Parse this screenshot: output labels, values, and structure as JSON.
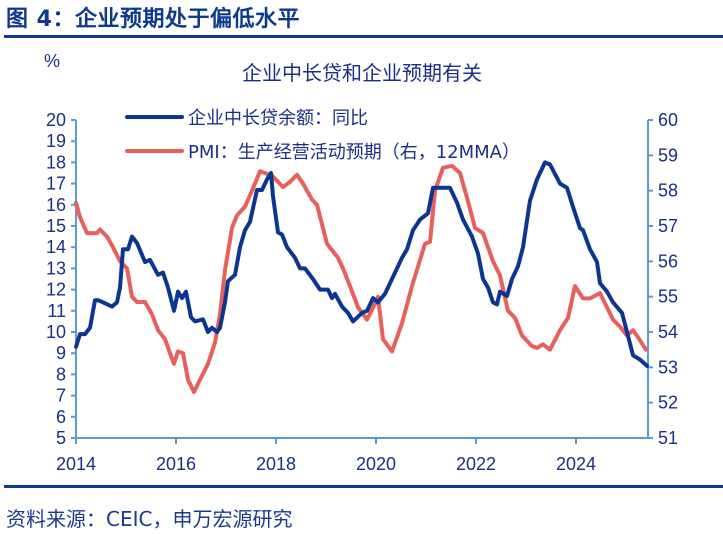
{
  "figure_title": "图 4：企业预期处于偏低水平",
  "source": "资料来源：CEIC，申万宏源研究",
  "chart_data": {
    "type": "line",
    "title": "企业中长贷和企业预期有关",
    "ylabel": "%",
    "xlim": [
      2014,
      2025.6
    ],
    "ylim_left": [
      5,
      20
    ],
    "ylim_right": [
      51,
      60
    ],
    "x_ticks": [
      "2014",
      "2016",
      "2018",
      "2020",
      "2022",
      "2024"
    ],
    "y_ticks_left": [
      "5",
      "6",
      "7",
      "8",
      "9",
      "10",
      "11",
      "12",
      "13",
      "14",
      "15",
      "16",
      "17",
      "18",
      "19",
      "20"
    ],
    "y_ticks_right": [
      "51",
      "52",
      "53",
      "54",
      "55",
      "56",
      "57",
      "58",
      "59",
      "60"
    ],
    "legend_position": "top-left",
    "colors": {
      "loan": "#0a3591",
      "pmi": "#e8605c",
      "axis": "#5b9bd5",
      "title": "#0d3a8e"
    },
    "series": [
      {
        "name": "企业中长贷余额：同比",
        "axis": "left",
        "color": "#0a3591",
        "points": [
          [
            2014.0,
            9.3
          ],
          [
            2014.08,
            9.9
          ],
          [
            2014.18,
            9.9
          ],
          [
            2014.28,
            10.2
          ],
          [
            2014.38,
            11.5
          ],
          [
            2014.44,
            11.5
          ],
          [
            2014.54,
            11.4
          ],
          [
            2014.72,
            11.2
          ],
          [
            2014.82,
            11.4
          ],
          [
            2014.88,
            12.1
          ],
          [
            2014.94,
            13.9
          ],
          [
            2015.04,
            13.9
          ],
          [
            2015.12,
            14.5
          ],
          [
            2015.22,
            14.2
          ],
          [
            2015.38,
            13.3
          ],
          [
            2015.48,
            13.4
          ],
          [
            2015.64,
            12.7
          ],
          [
            2015.74,
            12.8
          ],
          [
            2015.84,
            12.1
          ],
          [
            2015.96,
            11.0
          ],
          [
            2016.04,
            11.9
          ],
          [
            2016.12,
            11.6
          ],
          [
            2016.2,
            11.9
          ],
          [
            2016.3,
            10.7
          ],
          [
            2016.38,
            10.5
          ],
          [
            2016.54,
            10.6
          ],
          [
            2016.64,
            10.0
          ],
          [
            2016.72,
            10.2
          ],
          [
            2016.82,
            10.0
          ],
          [
            2016.88,
            10.2
          ],
          [
            2016.98,
            11.4
          ],
          [
            2017.04,
            12.4
          ],
          [
            2017.18,
            12.7
          ],
          [
            2017.28,
            14.0
          ],
          [
            2017.38,
            14.8
          ],
          [
            2017.48,
            15.2
          ],
          [
            2017.62,
            16.7
          ],
          [
            2017.72,
            16.7
          ],
          [
            2017.82,
            17.2
          ],
          [
            2017.9,
            17.5
          ],
          [
            2017.94,
            16.4
          ],
          [
            2018.04,
            14.7
          ],
          [
            2018.12,
            14.6
          ],
          [
            2018.22,
            14.0
          ],
          [
            2018.38,
            13.5
          ],
          [
            2018.48,
            13.0
          ],
          [
            2018.58,
            13.0
          ],
          [
            2018.74,
            12.5
          ],
          [
            2018.88,
            12.0
          ],
          [
            2019.04,
            12.0
          ],
          [
            2019.12,
            11.6
          ],
          [
            2019.18,
            11.8
          ],
          [
            2019.32,
            11.2
          ],
          [
            2019.44,
            10.9
          ],
          [
            2019.54,
            10.5
          ],
          [
            2019.72,
            10.9
          ],
          [
            2019.82,
            11.0
          ],
          [
            2019.94,
            11.6
          ],
          [
            2020.04,
            11.4
          ],
          [
            2020.18,
            11.8
          ],
          [
            2020.34,
            12.6
          ],
          [
            2020.52,
            13.5
          ],
          [
            2020.62,
            13.9
          ],
          [
            2020.74,
            14.8
          ],
          [
            2020.88,
            15.3
          ],
          [
            2021.04,
            15.6
          ],
          [
            2021.14,
            16.8
          ],
          [
            2021.28,
            16.8
          ],
          [
            2021.48,
            16.8
          ],
          [
            2021.62,
            16.1
          ],
          [
            2021.74,
            15.3
          ],
          [
            2021.92,
            14.5
          ],
          [
            2022.04,
            13.7
          ],
          [
            2022.14,
            12.5
          ],
          [
            2022.24,
            12.1
          ],
          [
            2022.34,
            11.4
          ],
          [
            2022.42,
            11.3
          ],
          [
            2022.48,
            11.9
          ],
          [
            2022.62,
            11.7
          ],
          [
            2022.72,
            12.5
          ],
          [
            2022.84,
            13.1
          ],
          [
            2022.94,
            14.0
          ],
          [
            2023.08,
            16.2
          ],
          [
            2023.22,
            17.2
          ],
          [
            2023.38,
            18.0
          ],
          [
            2023.48,
            17.9
          ],
          [
            2023.68,
            17.0
          ],
          [
            2023.82,
            16.8
          ],
          [
            2023.94,
            15.9
          ],
          [
            2024.08,
            14.9
          ],
          [
            2024.14,
            14.8
          ],
          [
            2024.28,
            13.9
          ],
          [
            2024.42,
            13.3
          ],
          [
            2024.48,
            12.3
          ],
          [
            2024.62,
            11.9
          ],
          [
            2024.74,
            11.4
          ],
          [
            2024.92,
            10.9
          ],
          [
            2025.02,
            10.0
          ],
          [
            2025.14,
            8.9
          ],
          [
            2025.28,
            8.7
          ],
          [
            2025.42,
            8.4
          ]
        ]
      },
      {
        "name": "PMI：生产经营活动预期（右，12MMA）",
        "axis": "right",
        "color": "#e8605c",
        "points": [
          [
            2014.0,
            57.65
          ],
          [
            2014.08,
            57.25
          ],
          [
            2014.22,
            56.8
          ],
          [
            2014.42,
            56.8
          ],
          [
            2014.48,
            56.9
          ],
          [
            2014.62,
            56.7
          ],
          [
            2014.74,
            56.4
          ],
          [
            2014.88,
            56.0
          ],
          [
            2015.02,
            55.8
          ],
          [
            2015.12,
            55.0
          ],
          [
            2015.22,
            54.85
          ],
          [
            2015.38,
            54.85
          ],
          [
            2015.52,
            54.5
          ],
          [
            2015.64,
            54.05
          ],
          [
            2015.78,
            53.8
          ],
          [
            2015.88,
            53.4
          ],
          [
            2015.96,
            53.1
          ],
          [
            2016.04,
            53.45
          ],
          [
            2016.14,
            53.4
          ],
          [
            2016.24,
            52.65
          ],
          [
            2016.36,
            52.3
          ],
          [
            2016.48,
            52.65
          ],
          [
            2016.64,
            53.1
          ],
          [
            2016.78,
            53.7
          ],
          [
            2016.88,
            54.5
          ],
          [
            2016.98,
            55.75
          ],
          [
            2017.12,
            56.95
          ],
          [
            2017.22,
            57.3
          ],
          [
            2017.38,
            57.55
          ],
          [
            2017.52,
            58.0
          ],
          [
            2017.68,
            58.55
          ],
          [
            2017.78,
            58.5
          ],
          [
            2017.94,
            58.4
          ],
          [
            2018.14,
            58.1
          ],
          [
            2018.28,
            58.25
          ],
          [
            2018.42,
            58.45
          ],
          [
            2018.54,
            58.2
          ],
          [
            2018.72,
            57.75
          ],
          [
            2018.82,
            57.6
          ],
          [
            2019.02,
            56.5
          ],
          [
            2019.24,
            56.1
          ],
          [
            2019.34,
            55.8
          ],
          [
            2019.48,
            55.3
          ],
          [
            2019.64,
            54.7
          ],
          [
            2019.82,
            54.35
          ],
          [
            2019.98,
            54.8
          ],
          [
            2020.04,
            55.0
          ],
          [
            2020.14,
            53.8
          ],
          [
            2020.32,
            53.45
          ],
          [
            2020.52,
            54.25
          ],
          [
            2020.72,
            55.3
          ],
          [
            2020.98,
            56.5
          ],
          [
            2021.08,
            56.55
          ],
          [
            2021.18,
            58.0
          ],
          [
            2021.34,
            58.65
          ],
          [
            2021.52,
            58.7
          ],
          [
            2021.68,
            58.5
          ],
          [
            2021.82,
            57.8
          ],
          [
            2021.98,
            56.95
          ],
          [
            2022.14,
            56.8
          ],
          [
            2022.34,
            56.0
          ],
          [
            2022.48,
            55.6
          ],
          [
            2022.64,
            54.6
          ],
          [
            2022.78,
            54.4
          ],
          [
            2022.92,
            53.9
          ],
          [
            2023.12,
            53.6
          ],
          [
            2023.22,
            53.55
          ],
          [
            2023.34,
            53.65
          ],
          [
            2023.48,
            53.5
          ],
          [
            2023.68,
            54.05
          ],
          [
            2023.84,
            54.4
          ],
          [
            2023.98,
            55.3
          ],
          [
            2024.14,
            54.95
          ],
          [
            2024.28,
            54.95
          ],
          [
            2024.48,
            55.1
          ],
          [
            2024.74,
            54.35
          ],
          [
            2024.88,
            54.15
          ],
          [
            2025.02,
            53.9
          ],
          [
            2025.14,
            54.05
          ],
          [
            2025.24,
            53.85
          ],
          [
            2025.4,
            53.5
          ]
        ]
      }
    ]
  }
}
